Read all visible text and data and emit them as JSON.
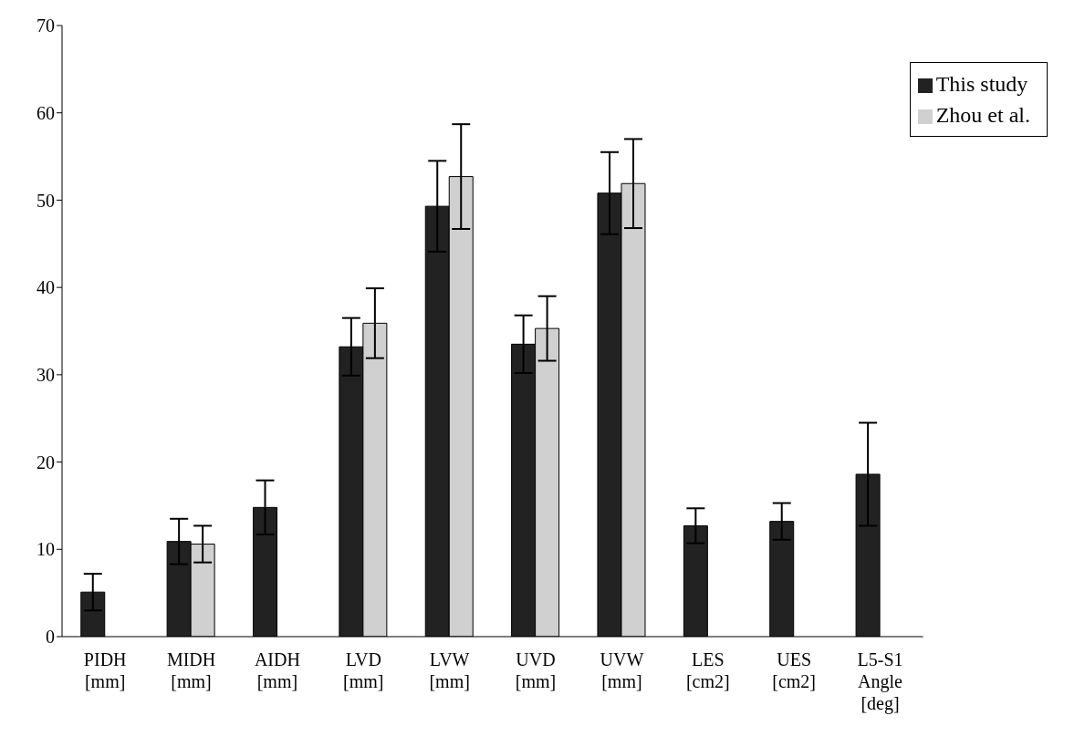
{
  "chart_data": {
    "type": "bar",
    "categories": [
      "PIDH [mm]",
      "MIDH [mm]",
      "AIDH [mm]",
      "LVD [mm]",
      "LVW [mm]",
      "UVD [mm]",
      "UVW [mm]",
      "LES [cm2]",
      "UES [cm2]",
      "L5-S1 Angle [deg]"
    ],
    "series": [
      {
        "name": "This study",
        "color": "#222222",
        "values": [
          5.1,
          10.9,
          14.8,
          33.2,
          49.3,
          33.5,
          50.8,
          12.7,
          13.2,
          18.6
        ],
        "errors": [
          2.1,
          2.6,
          3.1,
          3.3,
          5.2,
          3.3,
          4.7,
          2.0,
          2.1,
          5.9
        ]
      },
      {
        "name": "Zhou et al.",
        "color": "#d0d0d0",
        "values": [
          null,
          10.6,
          null,
          35.9,
          52.7,
          35.3,
          51.9,
          null,
          null,
          null
        ],
        "errors": [
          null,
          2.1,
          null,
          4.0,
          6.0,
          3.7,
          5.1,
          null,
          null,
          null
        ]
      }
    ],
    "ylim": [
      0,
      70
    ],
    "yticks": [
      0,
      10,
      20,
      30,
      40,
      50,
      60,
      70
    ],
    "grid": false,
    "legend": "top right"
  }
}
